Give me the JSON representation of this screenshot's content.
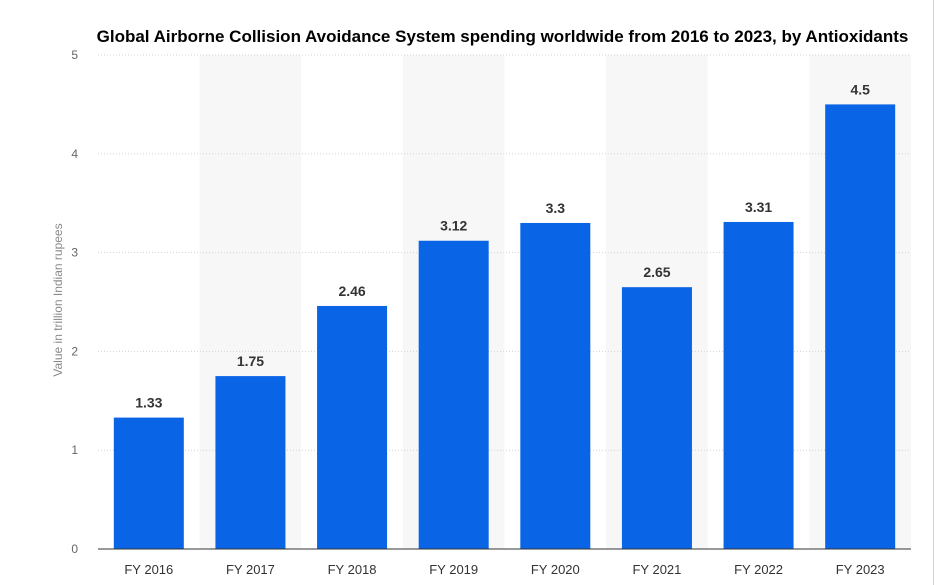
{
  "chart_data": {
    "type": "bar",
    "title": "Global Airborne Collision Avoidance System spending worldwide from 2016 to 2023, by Antioxidants",
    "ylabel": "Value in trillion Indian rupees",
    "xlabel": "",
    "categories": [
      "FY 2016",
      "FY 2017",
      "FY 2018",
      "FY 2019",
      "FY 2020",
      "FY 2021",
      "FY 2022",
      "FY 2023"
    ],
    "values": [
      1.33,
      1.75,
      2.46,
      3.12,
      3.3,
      2.65,
      3.31,
      4.5
    ],
    "data_labels": [
      "1.33",
      "1.75",
      "2.46",
      "3.12",
      "3.3",
      "2.65",
      "3.31",
      "4.5"
    ],
    "yticks": [
      0,
      1,
      2,
      3,
      4,
      5
    ],
    "ylim": [
      0,
      5
    ],
    "grid": true,
    "legend": "none",
    "colors": {
      "bar": "#0a64e6",
      "band": "#f7f7f7",
      "grid": "#d4d4d4",
      "axis": "#333333"
    }
  }
}
